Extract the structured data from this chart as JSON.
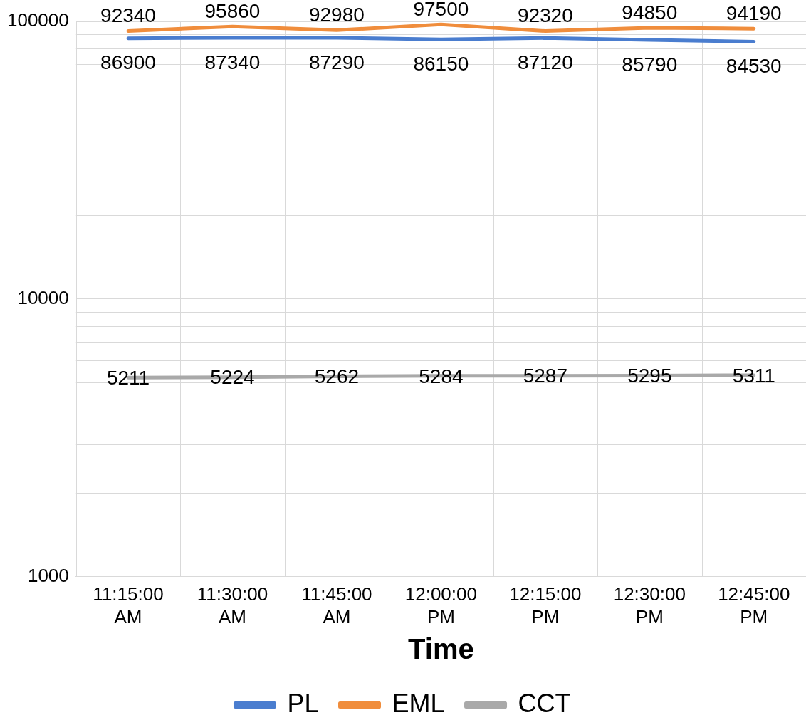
{
  "chart_data": {
    "type": "line",
    "xlabel": "Time",
    "categories": [
      "11:15:00 AM",
      "11:30:00 AM",
      "11:45:00 AM",
      "12:00:00 PM",
      "12:15:00 PM",
      "12:30:00 PM",
      "12:45:00 PM"
    ],
    "series": [
      {
        "name": "PL",
        "color": "#4a7dcf",
        "values": [
          86900,
          87340,
          87290,
          86150,
          87120,
          85790,
          84530
        ]
      },
      {
        "name": "EML",
        "color": "#f08d3c",
        "values": [
          92340,
          95860,
          92980,
          97500,
          92320,
          94850,
          94190
        ]
      },
      {
        "name": "CCT",
        "color": "#a9a9a9",
        "values": [
          5211,
          5224,
          5262,
          5284,
          5287,
          5295,
          5311
        ]
      }
    ],
    "log": "y",
    "ylim": [
      1000,
      100000
    ],
    "yticks": [
      1000,
      10000,
      100000
    ],
    "grid": true,
    "legend": "bottom",
    "data_labels": true,
    "marker": "none",
    "line_style": "solid"
  }
}
